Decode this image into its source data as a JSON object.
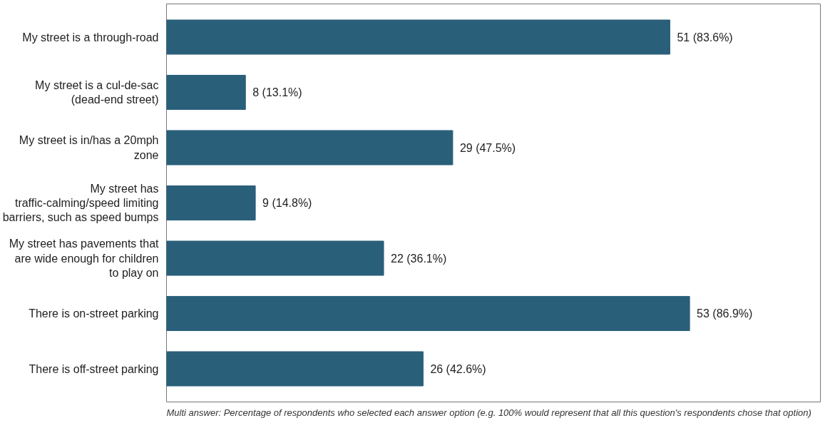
{
  "chart_data": {
    "type": "bar",
    "orientation": "horizontal",
    "categories": [
      "My street is a through-road",
      "My street is a cul-de-sac\n(dead-end street)",
      "My street is in/has a 20mph\nzone",
      "My street has\ntraffic-calming/speed limiting\nbarriers, such as speed bumps",
      "My street has pavements that\nare wide enough for children\nto play on",
      "There is on-street parking",
      "There is off-street parking"
    ],
    "values": [
      51,
      8,
      29,
      9,
      22,
      53,
      26
    ],
    "value_labels": [
      "51  (83.6%)",
      "8  (13.1%)",
      "29  (47.5%)",
      "9  (14.8%)",
      "22  (36.1%)",
      "53  (86.9%)",
      "26  (42.6%)"
    ],
    "color": "#2a5f7a",
    "annotations": [
      "Multi answer: Percentage of respondents who selected each answer option (e.g. 100% would represent that all this question's respondents chose that option)"
    ]
  }
}
